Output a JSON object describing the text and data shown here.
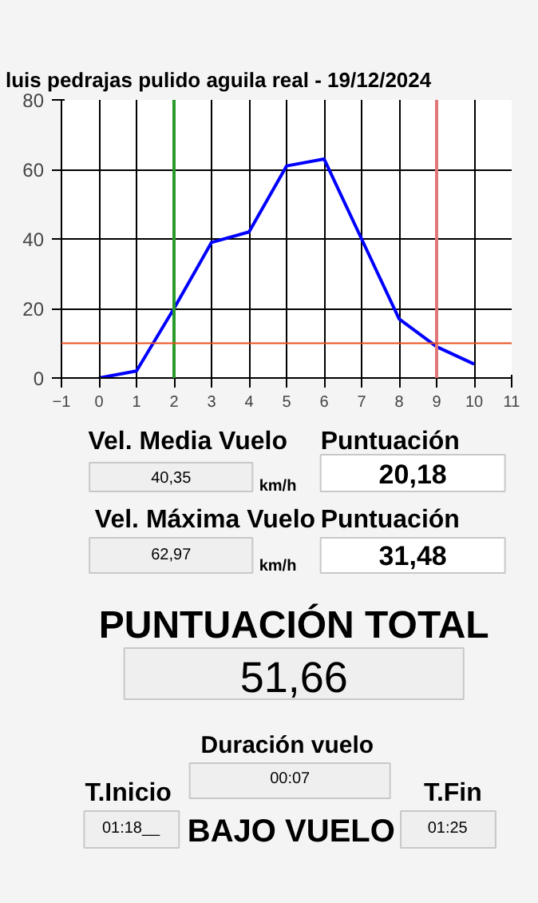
{
  "chart_data": [
    {
      "type": "line",
      "title": "luis pedrajas pulido aguila real  -  19/12/2024",
      "x": [
        0,
        1,
        2,
        3,
        4,
        5,
        6,
        7,
        8,
        9,
        10
      ],
      "series": [
        {
          "color": "#0000ff",
          "values": [
            0,
            2,
            20,
            39,
            42,
            61,
            63,
            40,
            17,
            9,
            4
          ]
        }
      ],
      "xlim": [
        -1,
        11
      ],
      "xticks": [
        -1,
        0,
        1,
        2,
        3,
        4,
        5,
        6,
        7,
        8,
        9,
        10,
        11
      ],
      "ylim": [
        0,
        80
      ],
      "yticks": [
        0,
        20,
        40,
        60,
        80
      ],
      "grid": true,
      "marker": "none",
      "line_style": "solid",
      "ref_lines": [
        {
          "axis": "x",
          "value": 2,
          "color": "#2a9a2a"
        },
        {
          "axis": "x",
          "value": 9,
          "color": "#e07878"
        },
        {
          "axis": "y",
          "value": 10,
          "color": "#e85020"
        }
      ]
    },
    {
      "type": "other",
      "annotations": [
        "Vel. Media Vuelo",
        "40,35",
        "km/h",
        "Puntuación",
        "20,18",
        "Vel. Máxima Vuelo",
        "62,97",
        "km/h",
        "Puntuación",
        "31,48",
        "PUNTUACIÓN TOTAL",
        "51,66",
        "Duración vuelo",
        "00:07",
        "T.Inicio",
        "01:18__",
        "BAJO VUELO",
        "T.Fin",
        "01:25"
      ]
    }
  ]
}
